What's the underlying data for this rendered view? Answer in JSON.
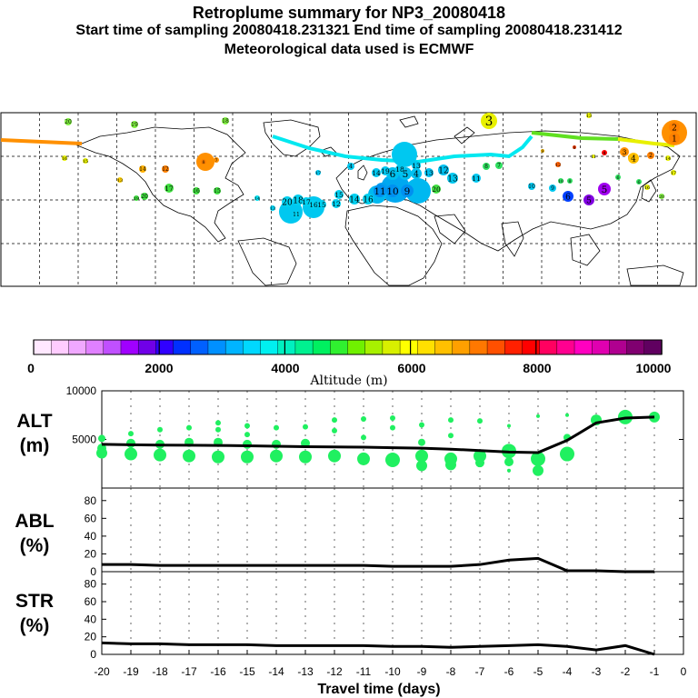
{
  "header": {
    "title": "Retroplume summary for NP3_20080418",
    "sampling_line": "Start time of sampling 20080418.231321      End time of sampling 20080418.231412",
    "met_line": "Meteorological data used is ECMWF"
  },
  "colorbar": {
    "label": "Altitude (m)",
    "tick_labels": [
      "0",
      "2000",
      "4000",
      "6000",
      "8000",
      "10000"
    ],
    "colors": [
      "#ffe8ff",
      "#ffccff",
      "#f0a8ff",
      "#e080ff",
      "#c050ff",
      "#a000ff",
      "#7000e8",
      "#3000ff",
      "#0030ff",
      "#0060ff",
      "#0090ff",
      "#00b4ff",
      "#00d8ff",
      "#00f0f0",
      "#00f0c0",
      "#00f090",
      "#00f060",
      "#30f030",
      "#70f000",
      "#a8f000",
      "#d8f000",
      "#ffff00",
      "#ffe000",
      "#ffc000",
      "#ffa000",
      "#ff7800",
      "#ff5000",
      "#ff2000",
      "#ff0000",
      "#ff0060",
      "#ff0090",
      "#ff00c0",
      "#e000b0",
      "#b00090",
      "#800070",
      "#600060"
    ]
  },
  "map": {
    "labels": [
      {
        "t": "20",
        "c": "#80f040"
      },
      {
        "t": "19",
        "c": "#80f040"
      },
      {
        "t": "18",
        "c": "#80f040"
      },
      {
        "t": "3",
        "c": "#e8f000"
      },
      {
        "t": "13",
        "c": "#e8f000"
      },
      {
        "t": "2",
        "c": "#ff8000"
      },
      {
        "t": "1",
        "c": "#ff8000"
      },
      {
        "t": "16",
        "c": "#e8f000"
      },
      {
        "t": "15",
        "c": "#e8f000"
      },
      {
        "t": "14",
        "c": "#ffb000"
      },
      {
        "t": "13",
        "c": "#ffd000"
      },
      {
        "t": "12",
        "c": "#ff8000"
      },
      {
        "t": "8",
        "c": "#ff8000"
      },
      {
        "t": "7",
        "c": "#ff9000"
      },
      {
        "t": "17",
        "c": "#40e040"
      },
      {
        "t": "16",
        "c": "#40e040"
      },
      {
        "t": "15",
        "c": "#40e040"
      },
      {
        "t": "20",
        "c": "#40e040"
      },
      {
        "t": "19",
        "c": "#40e040"
      },
      {
        "t": "14",
        "c": "#00e0f0"
      },
      {
        "t": "20",
        "c": "#00d0f0"
      },
      {
        "t": "18",
        "c": "#00d0f0"
      },
      {
        "t": "17",
        "c": "#00d0f0"
      },
      {
        "t": "16",
        "c": "#00d0f0"
      },
      {
        "t": "15",
        "c": "#00d0f0"
      },
      {
        "t": "13",
        "c": "#00d0f0"
      },
      {
        "t": "12",
        "c": "#00d0f0"
      },
      {
        "t": "11",
        "c": "#00d0f0"
      },
      {
        "t": "15",
        "c": "#00d0f0"
      },
      {
        "t": "14",
        "c": "#00d0f0"
      },
      {
        "t": "16",
        "c": "#00d0f0"
      },
      {
        "t": "7",
        "c": "#00a0f0"
      },
      {
        "t": "6",
        "c": "#00c0f0"
      },
      {
        "t": "5",
        "c": "#00c0f0"
      },
      {
        "t": "4",
        "c": "#00c0f0"
      },
      {
        "t": "13",
        "c": "#00c0f0"
      },
      {
        "t": "12",
        "c": "#00c0f0"
      },
      {
        "t": "11",
        "c": "#0090f0"
      },
      {
        "t": "10",
        "c": "#0090f0"
      },
      {
        "t": "9",
        "c": "#0090f0"
      },
      {
        "t": "20",
        "c": "#40e040"
      },
      {
        "t": "13",
        "c": "#00c8f0"
      },
      {
        "t": "11",
        "c": "#00c8f0"
      },
      {
        "t": "8",
        "c": "#30e060"
      },
      {
        "t": "7",
        "c": "#30e060"
      },
      {
        "t": "10",
        "c": "#00c8f0"
      },
      {
        "t": "9",
        "c": "#00c8f0"
      },
      {
        "t": "6",
        "c": "#0040ff"
      },
      {
        "t": "5",
        "c": "#8000e0"
      },
      {
        "t": "5",
        "c": "#a000f0"
      },
      {
        "t": "4",
        "c": "#ff0000"
      },
      {
        "t": "3",
        "c": "#ff9000"
      },
      {
        "t": "4",
        "c": "#ffc000"
      },
      {
        "t": "2",
        "c": "#ff8000"
      },
      {
        "t": "14",
        "c": "#e8f000"
      },
      {
        "t": "17",
        "c": "#e8f000"
      },
      {
        "t": "16",
        "c": "#e8f000"
      },
      {
        "t": "20",
        "c": "#80f040"
      },
      {
        "t": "11",
        "c": "#e8f000"
      },
      {
        "t": "8",
        "c": "#ff4000"
      },
      {
        "t": "12",
        "c": "#ff6000"
      },
      {
        "t": "9",
        "c": "#ffc000"
      },
      {
        "t": "10",
        "c": "#30e060"
      },
      {
        "t": "8",
        "c": "#30e060"
      },
      {
        "t": "6",
        "c": "#30e060"
      },
      {
        "t": "6",
        "c": "#30e060"
      },
      {
        "t": "4",
        "c": "#00c8f0"
      },
      {
        "t": "14",
        "c": "#00c8f0"
      },
      {
        "t": "13",
        "c": "#00c8f0"
      },
      {
        "t": "19",
        "c": "#00c8f0"
      },
      {
        "t": "18",
        "c": "#00c8f0"
      },
      {
        "t": "17",
        "c": "#00c8f0"
      },
      {
        "t": "12",
        "c": "#00c8f0"
      }
    ]
  },
  "chart_data": [
    {
      "type": "scatter",
      "panel": "ALT",
      "ylabel_line1": "ALT",
      "ylabel_line2": "(m)",
      "ylim": [
        0,
        10000
      ],
      "y_tick_labels": [
        "5000",
        "10000"
      ],
      "line": {
        "x": [
          -20,
          -19,
          -18,
          -17,
          -16,
          -15,
          -14,
          -13,
          -12,
          -11,
          -10,
          -9,
          -8,
          -7,
          -6,
          -5,
          -4,
          -3,
          -2,
          -1
        ],
        "y": [
          4500,
          4450,
          4420,
          4400,
          4380,
          4350,
          4300,
          4250,
          4230,
          4200,
          4150,
          4100,
          4000,
          3850,
          3700,
          3650,
          4900,
          6700,
          7200,
          7300
        ]
      },
      "points": [
        [
          -20,
          5100
        ],
        [
          -20,
          4100
        ],
        [
          -20,
          3600
        ],
        [
          -19,
          5600
        ],
        [
          -19,
          4600
        ],
        [
          -19,
          3500
        ],
        [
          -18,
          6000
        ],
        [
          -18,
          4500
        ],
        [
          -18,
          3400
        ],
        [
          -17,
          6200
        ],
        [
          -17,
          4700
        ],
        [
          -17,
          3300
        ],
        [
          -16,
          6700
        ],
        [
          -16,
          6000
        ],
        [
          -16,
          4700
        ],
        [
          -16,
          3200
        ],
        [
          -15,
          6400
        ],
        [
          -15,
          5500
        ],
        [
          -15,
          4500
        ],
        [
          -15,
          3200
        ],
        [
          -14,
          6200
        ],
        [
          -14,
          4500
        ],
        [
          -14,
          3300
        ],
        [
          -13,
          6300
        ],
        [
          -13,
          4600
        ],
        [
          -13,
          3200
        ],
        [
          -12,
          7000
        ],
        [
          -12,
          5900
        ],
        [
          -12,
          3300
        ],
        [
          -11,
          7100
        ],
        [
          -11,
          5200
        ],
        [
          -11,
          3000
        ],
        [
          -10,
          7200
        ],
        [
          -10,
          6200
        ],
        [
          -10,
          2900
        ],
        [
          -9,
          6500
        ],
        [
          -9,
          4700
        ],
        [
          -9,
          3300
        ],
        [
          -9,
          2300
        ],
        [
          -8,
          7000
        ],
        [
          -8,
          5400
        ],
        [
          -8,
          3000
        ],
        [
          -8,
          2400
        ],
        [
          -7,
          6900
        ],
        [
          -7,
          3300
        ],
        [
          -7,
          2600
        ],
        [
          -6,
          6400
        ],
        [
          -6,
          3800
        ],
        [
          -6,
          2700
        ],
        [
          -6,
          1800
        ],
        [
          -5,
          7400
        ],
        [
          -5,
          3000
        ],
        [
          -5,
          1800
        ],
        [
          -4,
          7500
        ],
        [
          -4,
          5200
        ],
        [
          -4,
          3500
        ],
        [
          -3,
          7000
        ],
        [
          -2,
          7300
        ],
        [
          -1,
          7300
        ]
      ],
      "point_sizes": [
        4,
        5,
        6,
        3,
        5,
        7,
        3,
        5,
        7,
        3,
        5,
        7,
        3,
        3,
        5,
        7,
        3,
        3,
        5,
        7,
        3,
        5,
        7,
        3,
        5,
        7,
        3,
        3,
        7,
        3,
        3,
        7,
        3,
        3,
        8,
        3,
        4,
        7,
        6,
        3,
        3,
        7,
        6,
        3,
        7,
        5,
        2,
        8,
        5,
        2,
        2,
        8,
        6,
        2,
        4,
        8,
        6,
        8,
        6
      ]
    },
    {
      "type": "line",
      "panel": "ABL",
      "ylabel_line1": "ABL",
      "ylabel_line2": "(%)",
      "ylim": [
        0,
        90
      ],
      "y_tick_labels": [
        "0",
        "20",
        "40",
        "60",
        "80"
      ],
      "x": [
        -20,
        -19,
        -18,
        -17,
        -16,
        -15,
        -14,
        -13,
        -12,
        -11,
        -10,
        -9,
        -8,
        -7,
        -6,
        -5,
        -4,
        -3,
        -2,
        -1
      ],
      "y": [
        8,
        8,
        7,
        7,
        7,
        7,
        7,
        7,
        7,
        7,
        6,
        6,
        6,
        8,
        13,
        15,
        1,
        1,
        0,
        0
      ]
    },
    {
      "type": "line",
      "panel": "STR",
      "ylabel_line1": "STR",
      "ylabel_line2": "(%)",
      "ylim": [
        0,
        90
      ],
      "y_tick_labels": [
        "0",
        "20",
        "40",
        "60",
        "80"
      ],
      "x": [
        -20,
        -19,
        -18,
        -17,
        -16,
        -15,
        -14,
        -13,
        -12,
        -11,
        -10,
        -9,
        -8,
        -7,
        -6,
        -5,
        -4,
        -3,
        -2,
        -1
      ],
      "y": [
        13,
        12,
        12,
        11,
        11,
        11,
        10,
        10,
        10,
        10,
        9,
        9,
        8,
        9,
        10,
        11,
        9,
        5,
        10,
        0
      ],
      "x_tick_labels": [
        "-20",
        "-19",
        "-18",
        "-17",
        "-16",
        "-15",
        "-14",
        "-13",
        "-12",
        "-11",
        "-10",
        "-9",
        "-8",
        "-7",
        "-6",
        "-5",
        "-4",
        "-3",
        "-2",
        "-1",
        "0"
      ],
      "xlabel": "Travel time (days)"
    }
  ]
}
